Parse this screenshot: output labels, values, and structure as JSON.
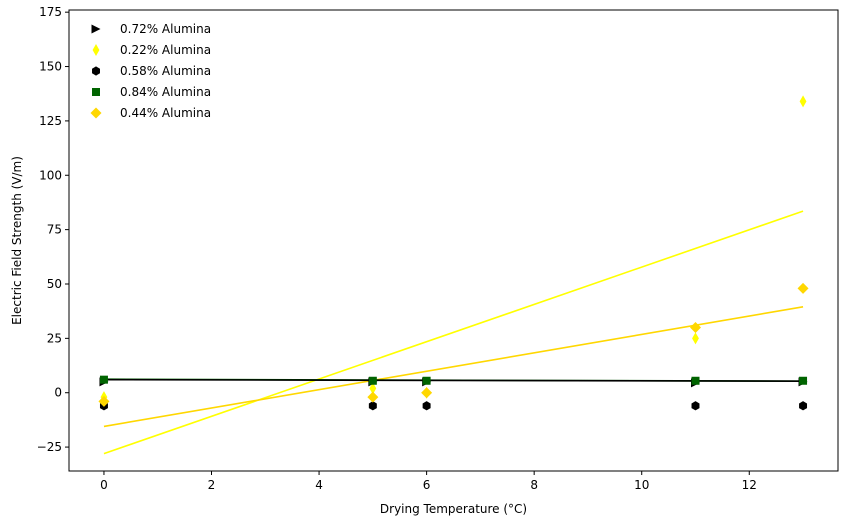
{
  "chart_data": {
    "type": "scatter",
    "title": "",
    "xlabel": "Drying Temperature (°C)",
    "ylabel": "Electric Field Strength (V/m)",
    "xlim": [
      -0.65,
      13.65
    ],
    "ylim": [
      -36,
      176
    ],
    "xticks": [
      0,
      2,
      4,
      6,
      8,
      10,
      12
    ],
    "yticks": [
      -25,
      0,
      25,
      50,
      75,
      100,
      125,
      150,
      175
    ],
    "grid": false,
    "legend_position": "top-left",
    "series": [
      {
        "name": "0.72% Alumina",
        "marker": "triangle-right",
        "color": "#000000",
        "x": [
          0,
          5,
          6,
          11,
          13
        ],
        "y": [
          5,
          5,
          5,
          4.5,
          5
        ]
      },
      {
        "name": "0.22% Alumina",
        "marker": "thin-diamond",
        "color": "#ffff00",
        "x": [
          0,
          5,
          6,
          11,
          13
        ],
        "y": [
          -2,
          2,
          0,
          25,
          134
        ]
      },
      {
        "name": "0.58% Alumina",
        "marker": "hexagon",
        "color": "#000000",
        "x": [
          0,
          5,
          6,
          11,
          13
        ],
        "y": [
          -6,
          -6,
          -6,
          -6,
          -6
        ]
      },
      {
        "name": "0.84% Alumina",
        "marker": "square",
        "color": "#006400",
        "x": [
          0,
          5,
          6,
          11,
          13
        ],
        "y": [
          6,
          5.5,
          5.5,
          5.5,
          5.5
        ]
      },
      {
        "name": "0.44% Alumina",
        "marker": "diamond",
        "color": "#ffd700",
        "x": [
          0,
          5,
          6,
          11,
          13
        ],
        "y": [
          -4,
          -2,
          0,
          30,
          48
        ]
      }
    ],
    "trend_lines": [
      {
        "color": "#ffff00",
        "x": [
          0,
          13
        ],
        "y": [
          -28,
          83.5
        ]
      },
      {
        "color": "#ffd700",
        "x": [
          0,
          13
        ],
        "y": [
          -15.5,
          39.5
        ]
      },
      {
        "color": "#006400",
        "x": [
          0,
          13
        ],
        "y": [
          6.2,
          5.3
        ]
      },
      {
        "color": "#000000",
        "x": [
          0,
          13
        ],
        "y": [
          6.0,
          5.3
        ]
      }
    ]
  }
}
